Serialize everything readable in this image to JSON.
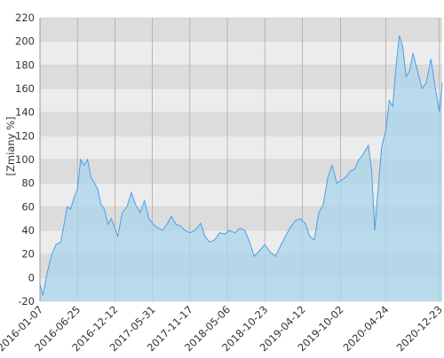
{
  "chart_data": {
    "type": "area",
    "y_axis_label": "[Zmiany %]",
    "x": [
      "2016-01-07",
      "2016-01-20",
      "2016-02-10",
      "2016-03-01",
      "2016-03-20",
      "2016-04-10",
      "2016-04-25",
      "2016-05-10",
      "2016-05-25",
      "2016-06-10",
      "2016-06-25",
      "2016-07-10",
      "2016-07-25",
      "2016-08-10",
      "2016-08-25",
      "2016-09-10",
      "2016-09-25",
      "2016-10-10",
      "2016-10-25",
      "2016-11-10",
      "2016-11-25",
      "2016-12-12",
      "2016-12-25",
      "2017-01-15",
      "2017-02-05",
      "2017-02-25",
      "2017-03-15",
      "2017-04-05",
      "2017-04-25",
      "2017-05-15",
      "2017-06-05",
      "2017-06-25",
      "2017-07-15",
      "2017-08-05",
      "2017-08-25",
      "2017-09-15",
      "2017-10-05",
      "2017-10-25",
      "2017-11-17",
      "2017-12-10",
      "2018-01-05",
      "2018-01-25",
      "2018-02-15",
      "2018-03-10",
      "2018-04-01",
      "2018-04-25",
      "2018-05-15",
      "2018-06-10",
      "2018-07-01",
      "2018-07-25",
      "2018-08-15",
      "2018-09-05",
      "2018-09-25",
      "2018-10-23",
      "2018-11-15",
      "2018-12-10",
      "2019-01-05",
      "2019-01-25",
      "2019-02-15",
      "2019-03-10",
      "2019-04-01",
      "2019-04-25",
      "2019-05-15",
      "2019-06-05",
      "2019-06-25",
      "2019-07-15",
      "2019-08-05",
      "2019-08-25",
      "2019-09-15",
      "2019-10-02",
      "2019-10-25",
      "2019-11-15",
      "2019-12-05",
      "2019-12-25",
      "2020-01-15",
      "2020-02-05",
      "2020-02-20",
      "2020-03-05",
      "2020-03-20",
      "2020-04-05",
      "2020-04-24",
      "2020-05-10",
      "2020-05-25",
      "2020-06-10",
      "2020-06-25",
      "2020-07-10",
      "2020-07-25",
      "2020-08-10",
      "2020-08-25",
      "2020-09-15",
      "2020-10-05",
      "2020-10-25",
      "2020-11-15",
      "2020-12-05",
      "2020-12-23",
      "2021-01-05"
    ],
    "values": [
      -5,
      -15,
      5,
      20,
      28,
      30,
      45,
      60,
      58,
      68,
      75,
      100,
      95,
      100,
      85,
      80,
      75,
      62,
      58,
      45,
      50,
      42,
      35,
      55,
      60,
      72,
      62,
      55,
      65,
      50,
      45,
      42,
      40,
      45,
      52,
      45,
      44,
      40,
      38,
      40,
      46,
      35,
      30,
      32,
      38,
      37,
      40,
      38,
      42,
      40,
      30,
      18,
      22,
      28,
      22,
      18,
      28,
      35,
      42,
      48,
      50,
      46,
      35,
      32,
      55,
      62,
      85,
      95,
      80,
      82,
      85,
      90,
      92,
      100,
      105,
      112,
      90,
      40,
      75,
      110,
      125,
      150,
      145,
      180,
      205,
      195,
      170,
      175,
      190,
      175,
      160,
      165,
      185,
      160,
      140,
      165
    ],
    "line_color": "#4a9fe8",
    "fill_color": "#a9d6ec",
    "xlim": [
      "2016-01-07",
      "2021-01-05"
    ],
    "xticks": [
      "2016-01-07",
      "2016-06-25",
      "2016-12-12",
      "2017-05-31",
      "2017-11-17",
      "2018-05-06",
      "2018-10-23",
      "2019-04-12",
      "2019-10-02",
      "2020-04-24",
      "2020-12-23"
    ],
    "ylim": [
      -20,
      220
    ],
    "yticks": [
      -20,
      0,
      20,
      40,
      60,
      80,
      100,
      120,
      140,
      160,
      180,
      200,
      220
    ],
    "grid": true
  }
}
